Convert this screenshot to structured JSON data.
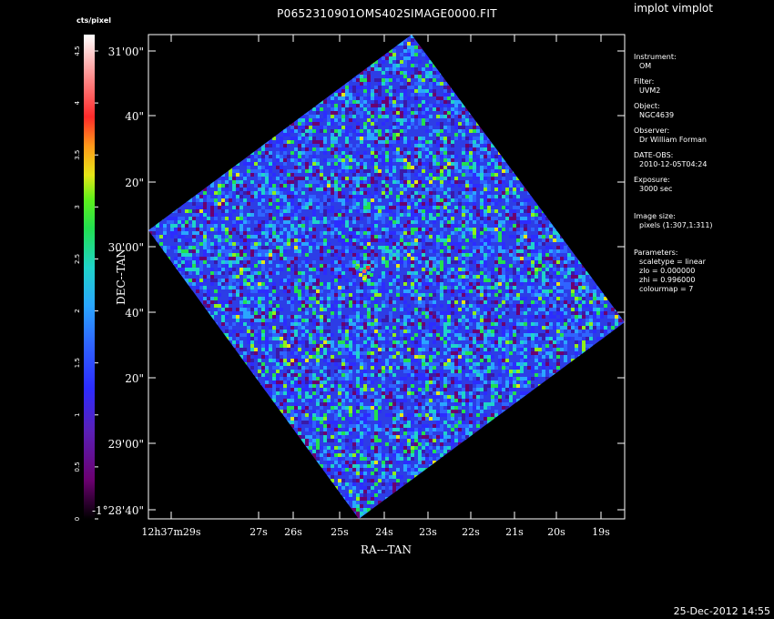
{
  "app": {
    "title": "implot vimplot",
    "timestamp": "25-Dec-2012 14:55"
  },
  "plot": {
    "title": "P0652310901OMS402SIMAGE0000.FIT",
    "x_label": "RA---TAN",
    "y_label": "DEC--TAN",
    "y_ticks": [
      "31'00\"",
      "40\"",
      "20\"",
      "30'00\"",
      "40\"",
      "20\"",
      "29'00\"",
      "-1°28'40\""
    ],
    "x_ticks": [
      "12h37m29s",
      "27s",
      "26s",
      "25s",
      "24s",
      "23s",
      "22s",
      "21s",
      "20s",
      "19s"
    ]
  },
  "colorbar": {
    "label": "cts/pixel",
    "ticks": [
      "4.5",
      "4",
      "3.5",
      "3",
      "2.5",
      "2",
      "1.5",
      "1",
      "0.5",
      "0"
    ]
  },
  "info": {
    "instrument_label": "Instrument:",
    "instrument": "OM",
    "filter_label": "Filter:",
    "filter": "UVM2",
    "object_label": "Object:",
    "object": "NGC4639",
    "observer_label": "Observer:",
    "observer": "Dr William Forman",
    "date_label": "DATE-OBS:",
    "date": "2010-12-05T04:24",
    "exposure_label": "Exposure:",
    "exposure": "3000 sec",
    "size_label": "Image size:",
    "size": "pixels (1:307,1:311)",
    "params_label": "Parameters:",
    "params": [
      "scaletype = linear",
      "zlo = 0.000000",
      "zhi = 0.996000",
      "colourmap = 7"
    ]
  }
}
